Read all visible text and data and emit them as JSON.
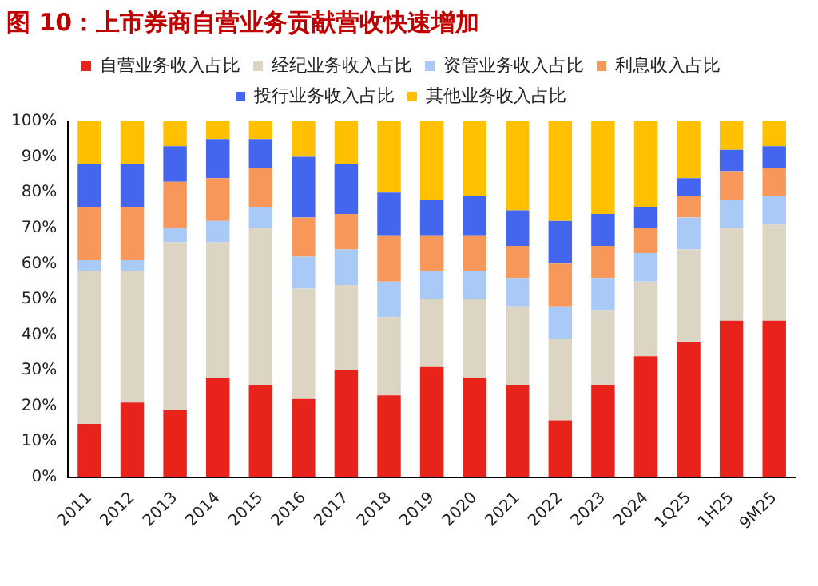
{
  "chart_data": {
    "type": "bar",
    "stacked": true,
    "title": "图 10：上市券商自营业务贡献营收快速增加",
    "categories": [
      "2011",
      "2012",
      "2013",
      "2014",
      "2015",
      "2016",
      "2017",
      "2018",
      "2019",
      "2020",
      "2021",
      "2022",
      "2023",
      "2024",
      "1Q25",
      "1H25",
      "9M25"
    ],
    "series": [
      {
        "name": "自营业务收入占比",
        "color": "#e8231c",
        "values": [
          15,
          21,
          19,
          28,
          26,
          22,
          30,
          23,
          31,
          28,
          26,
          16,
          26,
          34,
          38,
          44,
          44
        ]
      },
      {
        "name": "经纪业务收入占比",
        "color": "#ddd5c3",
        "values": [
          43,
          37,
          47,
          38,
          44,
          31,
          24,
          22,
          19,
          22,
          22,
          23,
          21,
          21,
          26,
          26,
          27
        ]
      },
      {
        "name": "资管业务收入占比",
        "color": "#a9c9f7",
        "values": [
          3,
          3,
          4,
          6,
          6,
          9,
          10,
          10,
          8,
          8,
          8,
          9,
          9,
          8,
          9,
          8,
          8
        ]
      },
      {
        "name": "利息收入占比",
        "color": "#f8975a",
        "values": [
          15,
          15,
          13,
          12,
          11,
          11,
          10,
          13,
          10,
          10,
          9,
          12,
          9,
          7,
          6,
          8,
          8
        ]
      },
      {
        "name": "投行业务收入占比",
        "color": "#4466ee",
        "values": [
          12,
          12,
          10,
          11,
          8,
          17,
          14,
          12,
          10,
          11,
          10,
          12,
          9,
          6,
          5,
          6,
          6
        ]
      },
      {
        "name": "其他业务收入占比",
        "color": "#ffc000",
        "values": [
          12,
          12,
          7,
          5,
          5,
          10,
          12,
          20,
          22,
          21,
          25,
          28,
          26,
          24,
          16,
          8,
          7
        ]
      }
    ],
    "ylim": [
      0,
      100
    ],
    "yticks": [
      {
        "value": 0,
        "label": "0%"
      },
      {
        "value": 10,
        "label": "10%"
      },
      {
        "value": 20,
        "label": "20%"
      },
      {
        "value": 30,
        "label": "30%"
      },
      {
        "value": 40,
        "label": "40%"
      },
      {
        "value": 50,
        "label": "50%"
      },
      {
        "value": 60,
        "label": "60%"
      },
      {
        "value": 70,
        "label": "70%"
      },
      {
        "value": 80,
        "label": "80%"
      },
      {
        "value": 90,
        "label": "90%"
      },
      {
        "value": 100,
        "label": "100%"
      }
    ],
    "grid": false,
    "legend": "top"
  }
}
